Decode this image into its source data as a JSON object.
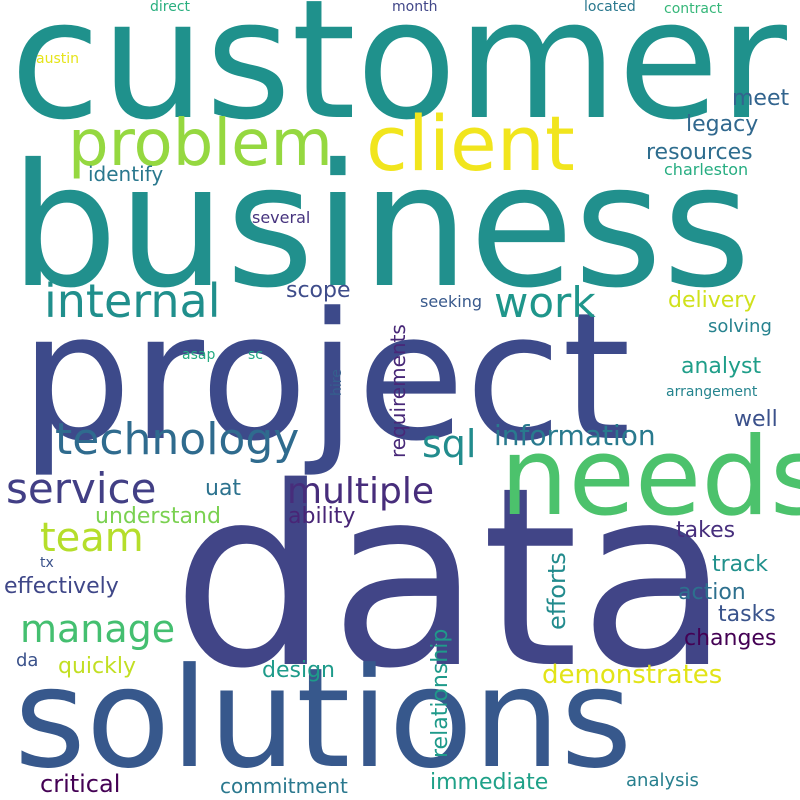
{
  "words": [
    {
      "id": "customer",
      "text": "customer",
      "color": "#1f918c",
      "orientation": "horizontal"
    },
    {
      "id": "business",
      "text": "business",
      "color": "#21908d",
      "orientation": "horizontal"
    },
    {
      "id": "project",
      "text": "project",
      "color": "#3d4a8a",
      "orientation": "horizontal"
    },
    {
      "id": "data",
      "text": "data",
      "color": "#414587",
      "orientation": "horizontal"
    },
    {
      "id": "solutions",
      "text": "solutions",
      "color": "#37588c",
      "orientation": "horizontal"
    },
    {
      "id": "needs",
      "text": "needs",
      "color": "#4cc26c",
      "orientation": "horizontal"
    },
    {
      "id": "client",
      "text": "client",
      "color": "#f1e51d",
      "orientation": "horizontal"
    },
    {
      "id": "problem",
      "text": "problem",
      "color": "#95d840",
      "orientation": "horizontal"
    },
    {
      "id": "technology",
      "text": "technology",
      "color": "#2f6b8e",
      "orientation": "horizontal"
    },
    {
      "id": "internal",
      "text": "internal",
      "color": "#208f8c",
      "orientation": "horizontal"
    },
    {
      "id": "service",
      "text": "service",
      "color": "#423f85",
      "orientation": "horizontal"
    },
    {
      "id": "work",
      "text": "work",
      "color": "#1f968b",
      "orientation": "horizontal"
    },
    {
      "id": "multiple",
      "text": "multiple",
      "color": "#472d7b",
      "orientation": "horizontal"
    },
    {
      "id": "manage",
      "text": "manage",
      "color": "#44bf70",
      "orientation": "horizontal"
    },
    {
      "id": "team",
      "text": "team",
      "color": "#b5de2b",
      "orientation": "horizontal"
    },
    {
      "id": "sql",
      "text": "sql",
      "color": "#228c8d",
      "orientation": "horizontal"
    },
    {
      "id": "information",
      "text": "information",
      "color": "#297a8e",
      "orientation": "horizontal"
    },
    {
      "id": "meet",
      "text": "meet",
      "color": "#32648e",
      "orientation": "horizontal"
    },
    {
      "id": "legacy",
      "text": "legacy",
      "color": "#31688e",
      "orientation": "horizontal"
    },
    {
      "id": "resources",
      "text": "resources",
      "color": "#2e6d8e",
      "orientation": "horizontal"
    },
    {
      "id": "identify",
      "text": "identify",
      "color": "#2a788e",
      "orientation": "horizontal"
    },
    {
      "id": "charleston",
      "text": "charleston",
      "color": "#26ad81",
      "orientation": "horizontal"
    },
    {
      "id": "several",
      "text": "several",
      "color": "#46337e",
      "orientation": "horizontal"
    },
    {
      "id": "scope",
      "text": "scope",
      "color": "#3e4c8a",
      "orientation": "horizontal"
    },
    {
      "id": "seeking",
      "text": "seeking",
      "color": "#38598c",
      "orientation": "horizontal"
    },
    {
      "id": "delivery",
      "text": "delivery",
      "color": "#d0e11c",
      "orientation": "horizontal"
    },
    {
      "id": "solving",
      "text": "solving",
      "color": "#26828e",
      "orientation": "horizontal"
    },
    {
      "id": "analyst",
      "text": "analyst",
      "color": "#1f9e89",
      "orientation": "horizontal"
    },
    {
      "id": "arrangement",
      "text": "arrangement",
      "color": "#25848e",
      "orientation": "horizontal"
    },
    {
      "id": "well",
      "text": "well",
      "color": "#3b518b",
      "orientation": "horizontal"
    },
    {
      "id": "uat",
      "text": "uat",
      "color": "#2c728e",
      "orientation": "horizontal"
    },
    {
      "id": "ability",
      "text": "ability",
      "color": "#482576",
      "orientation": "horizontal"
    },
    {
      "id": "understand",
      "text": "understand",
      "color": "#7ad151",
      "orientation": "horizontal"
    },
    {
      "id": "takes",
      "text": "takes",
      "color": "#472f7d",
      "orientation": "horizontal"
    },
    {
      "id": "track",
      "text": "track",
      "color": "#21918c",
      "orientation": "horizontal"
    },
    {
      "id": "tx",
      "text": "tx",
      "color": "#3b528b",
      "orientation": "horizontal"
    },
    {
      "id": "effectively",
      "text": "effectively",
      "color": "#3f4788",
      "orientation": "horizontal"
    },
    {
      "id": "action",
      "text": "action",
      "color": "#2d708e",
      "orientation": "horizontal"
    },
    {
      "id": "tasks",
      "text": "tasks",
      "color": "#3a548c",
      "orientation": "horizontal"
    },
    {
      "id": "changes",
      "text": "changes",
      "color": "#440154",
      "orientation": "horizontal"
    },
    {
      "id": "da",
      "text": "da",
      "color": "#3b528b",
      "orientation": "horizontal"
    },
    {
      "id": "quickly",
      "text": "quickly",
      "color": "#c2df23",
      "orientation": "horizontal"
    },
    {
      "id": "demonstrates",
      "text": "demonstrates",
      "color": "#e2e418",
      "orientation": "horizontal"
    },
    {
      "id": "design",
      "text": "design",
      "color": "#1e9b8a",
      "orientation": "horizontal"
    },
    {
      "id": "critical",
      "text": "critical",
      "color": "#440154",
      "orientation": "horizontal"
    },
    {
      "id": "commitment",
      "text": "commitment",
      "color": "#2a788e",
      "orientation": "horizontal"
    },
    {
      "id": "immediate",
      "text": "immediate",
      "color": "#1fa188",
      "orientation": "horizontal"
    },
    {
      "id": "analysis",
      "text": "analysis",
      "color": "#277f8e",
      "orientation": "horizontal"
    },
    {
      "id": "asap",
      "text": "asap",
      "color": "#25ab82",
      "orientation": "horizontal"
    },
    {
      "id": "sc",
      "text": "sc",
      "color": "#22a785",
      "orientation": "horizontal"
    },
    {
      "id": "direct",
      "text": "direct",
      "color": "#29af7f",
      "orientation": "horizontal"
    },
    {
      "id": "month",
      "text": "month",
      "color": "#404688",
      "orientation": "horizontal"
    },
    {
      "id": "located",
      "text": "located",
      "color": "#2a788e",
      "orientation": "horizontal"
    },
    {
      "id": "contract",
      "text": "contract",
      "color": "#35b779",
      "orientation": "horizontal"
    },
    {
      "id": "austin",
      "text": "austin",
      "color": "#e5e419",
      "orientation": "horizontal"
    },
    {
      "id": "requirements",
      "text": "requirements",
      "color": "#482878",
      "orientation": "vertical"
    },
    {
      "id": "hire",
      "text": "hire",
      "color": "#355f8d",
      "orientation": "vertical"
    },
    {
      "id": "efforts",
      "text": "efforts",
      "color": "#228b8d",
      "orientation": "vertical"
    },
    {
      "id": "relationship",
      "text": "relationship",
      "color": "#1f9a8a",
      "orientation": "vertical"
    }
  ]
}
